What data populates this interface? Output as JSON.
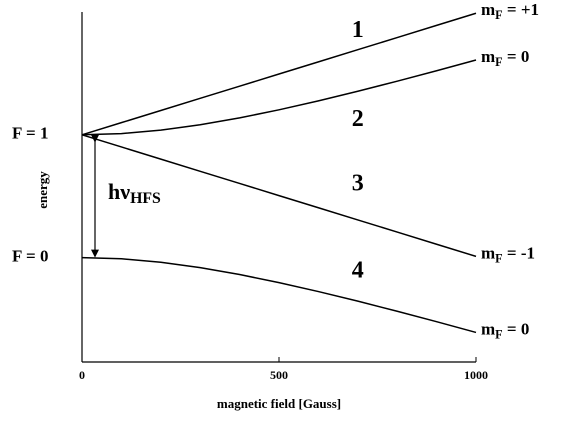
{
  "chart_data": {
    "type": "line",
    "x_label": "magnetic field [Gauss]",
    "y_label": "energy",
    "x": [
      0,
      100,
      200,
      300,
      400,
      500,
      600,
      700,
      800,
      900,
      1000
    ],
    "xlim": [
      0,
      1000
    ],
    "xticks": [
      0,
      500,
      1000
    ],
    "ylim": [
      -0.85,
      2.0
    ],
    "yticks": [
      {
        "value": 1,
        "label": "F = 1"
      },
      {
        "value": 0,
        "label": "F = 0"
      }
    ],
    "series": [
      {
        "name": "1",
        "color": "#000000",
        "end_label": {
          "main": "m",
          "sub": "F",
          "rest": " = +1"
        },
        "values": [
          1,
          1.099,
          1.198,
          1.297,
          1.396,
          1.495,
          1.594,
          1.693,
          1.792,
          1.891,
          1.99
        ]
      },
      {
        "name": "2",
        "color": "#000000",
        "end_label": {
          "main": "m",
          "sub": "F",
          "rest": " =  0"
        },
        "values": [
          1,
          1.0097,
          1.0378,
          1.0816,
          1.1378,
          1.2036,
          1.2764,
          1.3546,
          1.4366,
          1.5217,
          1.6091
        ]
      },
      {
        "name": "3",
        "color": "#000000",
        "end_label": {
          "main": "m",
          "sub": "F",
          "rest": " = -1"
        },
        "values": [
          1,
          0.901,
          0.802,
          0.703,
          0.604,
          0.505,
          0.406,
          0.307,
          0.208,
          0.109,
          0.01
        ]
      },
      {
        "name": "4",
        "color": "#000000",
        "end_label": {
          "main": "m",
          "sub": "F",
          "rest": " =  0"
        },
        "values": [
          0,
          -0.0097,
          -0.0378,
          -0.0816,
          -0.1378,
          -0.2036,
          -0.2764,
          -0.3546,
          -0.4366,
          -0.5217,
          -0.6091
        ]
      }
    ],
    "annotation": {
      "main": "hν",
      "sub": "HFS"
    }
  }
}
